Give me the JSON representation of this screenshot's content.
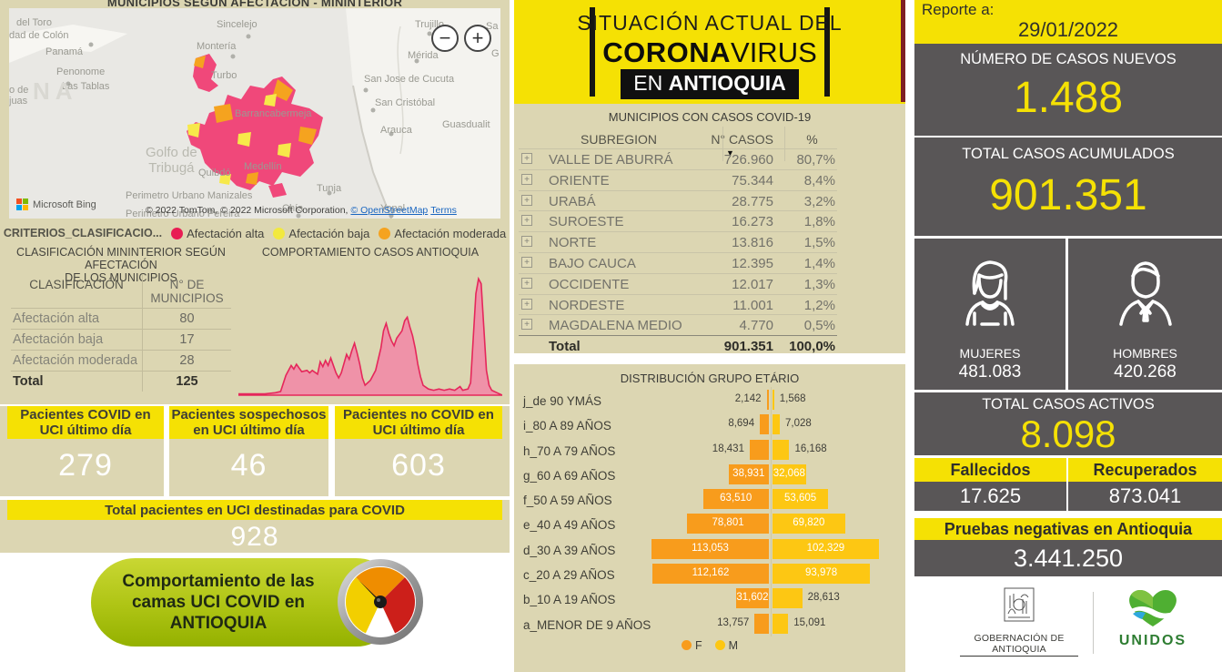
{
  "left": {
    "map": {
      "title": "MUNICIPIOS SEGÚN AFECTACIÓN - MININTERIOR",
      "labels": [
        "del Toro",
        "dad de Colón",
        "Panamá",
        "Penonome",
        "Las Tablas",
        "o de",
        "juas",
        "NA",
        "Sincelejo",
        "Montería",
        "Turbo",
        "Barrancabermeja",
        "Golfo de\nTribugá",
        "Quibdó",
        "Medellín",
        "Perimetro Urbano Manizales",
        "Perimetro Urbano Pereira",
        "Chía",
        "Tunja",
        "Yopal",
        "Trujillo",
        "Sa",
        "Mérida",
        "G",
        "San Jose de Cucuta",
        "San Cristóbal",
        "Arauca",
        "Guasdualit"
      ],
      "zoom_out": "−",
      "zoom_in": "+",
      "bing": "Microsoft Bing",
      "attribution": "© 2022 TomTom, © 2022 Microsoft Corporation,",
      "osm_link": "© OpenStreetMap",
      "terms_link": "Terms"
    },
    "legend": {
      "title": "CRITERIOS_CLASIFICACIO...",
      "items": [
        {
          "label": "Afectación alta",
          "color": "#e81d53"
        },
        {
          "label": "Afectación baja",
          "color": "#f2e93e"
        },
        {
          "label": "Afectación moderada",
          "color": "#f5a31f"
        }
      ]
    },
    "classification": {
      "title_line1": "CLASIFICACIÓN MININTERIOR SEGÚN AFECTACIÓN",
      "title_line2": "DE LOS MUNICIPIOS",
      "col1": "CLASIFICACIÓN",
      "col2": "N° DE MUNICIPIOS",
      "rows": [
        {
          "label": "Afectación alta",
          "value": "80"
        },
        {
          "label": "Afectación baja",
          "value": "17"
        },
        {
          "label": "Afectación moderada",
          "value": "28"
        }
      ],
      "total_label": "Total",
      "total_value": "125"
    },
    "uci_cards": [
      {
        "label": "Pacientes COVID en UCI último día",
        "value": "279"
      },
      {
        "label": "Pacientes sospechosos en UCI último día",
        "value": "46"
      },
      {
        "label": "Pacientes no COVID en UCI último día",
        "value": "603"
      }
    ],
    "uci_total": {
      "label": "Total pacientes en UCI destinadas para COVID",
      "value": "928"
    },
    "badge": {
      "line1": "Comportamiento de las",
      "line2": "camas UCI COVID en",
      "line3": "ANTIOQUIA"
    }
  },
  "middle": {
    "header": {
      "line1": "SITUACIÓN ACTUAL DEL",
      "brand_bold": "CORONA",
      "brand_light": "VIRUS",
      "en": "EN ",
      "region": "ANTIOQUIA"
    },
    "table": {
      "title": "MUNICIPIOS CON CASOS COVID-19",
      "col_subregion": "SUBREGION",
      "col_cases": "N° CASOS",
      "col_pct": "%",
      "sort_icon": "▼",
      "expand_icon": "+",
      "rows": [
        {
          "region": "VALLE DE ABURRÁ",
          "cases": "726.960",
          "pct": "80,7%"
        },
        {
          "region": "ORIENTE",
          "cases": "75.344",
          "pct": "8,4%"
        },
        {
          "region": "URABÁ",
          "cases": "28.775",
          "pct": "3,2%"
        },
        {
          "region": "SUROESTE",
          "cases": "16.273",
          "pct": "1,8%"
        },
        {
          "region": "NORTE",
          "cases": "13.816",
          "pct": "1,5%"
        },
        {
          "region": "BAJO CAUCA",
          "cases": "12.395",
          "pct": "1,4%"
        },
        {
          "region": "OCCIDENTE",
          "cases": "12.017",
          "pct": "1,3%"
        },
        {
          "region": "NORDESTE",
          "cases": "11.001",
          "pct": "1,2%"
        },
        {
          "region": "MAGDALENA MEDIO",
          "cases": "4.770",
          "pct": "0,5%"
        }
      ],
      "total": {
        "region": "Total",
        "cases": "901.351",
        "pct": "100,0%"
      }
    }
  },
  "right": {
    "report_label": "Reporte a:",
    "report_date": "29/01/2022",
    "new_cases": {
      "label": "NÚMERO DE CASOS NUEVOS",
      "value": "1.488"
    },
    "total_cases": {
      "label": "TOTAL CASOS ACUMULADOS",
      "value": "901.351"
    },
    "women": {
      "label": "MUJERES",
      "value": "481.083"
    },
    "men": {
      "label": "HOMBRES",
      "value": "420.268"
    },
    "active": {
      "label": "TOTAL CASOS ACTIVOS",
      "value": "8.098"
    },
    "deaths": {
      "label": "Fallecidos",
      "value": "17.625"
    },
    "recovered": {
      "label": "Recuperados",
      "value": "873.041"
    },
    "negative_tests": {
      "label": "Pruebas negativas en Antioquia",
      "value": "3.441.250"
    },
    "gov_logo_text": "GOBERNACIÓN DE ANTIOQUIA",
    "unidos_logo_text": "UNIDOS"
  },
  "chart_data": [
    {
      "type": "area",
      "title": "COMPORTAMIENTO CASOS ANTIOQUIA",
      "xlabel": "",
      "ylabel": "",
      "axis_labels_shown": false,
      "fill_color": "#ef92a8",
      "stroke_color": "#e5275b",
      "points": [
        [
          0,
          1
        ],
        [
          5,
          1
        ],
        [
          10,
          1
        ],
        [
          14,
          2
        ],
        [
          16,
          3
        ],
        [
          18,
          16
        ],
        [
          20,
          24
        ],
        [
          21,
          21
        ],
        [
          22,
          25
        ],
        [
          24,
          19
        ],
        [
          26,
          20
        ],
        [
          27,
          18
        ],
        [
          28,
          20
        ],
        [
          30,
          17
        ],
        [
          31,
          27
        ],
        [
          32,
          23
        ],
        [
          33,
          28
        ],
        [
          34,
          24
        ],
        [
          35,
          30
        ],
        [
          37,
          18
        ],
        [
          38,
          14
        ],
        [
          39,
          18
        ],
        [
          41,
          33
        ],
        [
          42,
          29
        ],
        [
          43,
          36
        ],
        [
          44,
          42
        ],
        [
          45,
          34
        ],
        [
          46,
          25
        ],
        [
          47,
          14
        ],
        [
          48,
          8
        ],
        [
          50,
          12
        ],
        [
          52,
          20
        ],
        [
          54,
          38
        ],
        [
          55,
          52
        ],
        [
          56,
          58
        ],
        [
          57,
          50
        ],
        [
          58,
          44
        ],
        [
          59,
          40
        ],
        [
          60,
          46
        ],
        [
          62,
          52
        ],
        [
          63,
          60
        ],
        [
          64,
          63
        ],
        [
          65,
          55
        ],
        [
          66,
          48
        ],
        [
          67,
          38
        ],
        [
          68,
          25
        ],
        [
          69,
          15
        ],
        [
          70,
          8
        ],
        [
          72,
          5
        ],
        [
          74,
          4
        ],
        [
          76,
          5
        ],
        [
          78,
          4
        ],
        [
          80,
          5
        ],
        [
          82,
          4
        ],
        [
          84,
          7
        ],
        [
          85,
          4
        ],
        [
          87,
          5
        ],
        [
          88,
          10
        ],
        [
          90,
          82
        ],
        [
          91,
          94
        ],
        [
          92,
          90
        ],
        [
          93,
          55
        ],
        [
          94,
          20
        ],
        [
          95,
          8
        ],
        [
          96,
          4
        ],
        [
          98,
          2
        ],
        [
          100,
          0
        ]
      ]
    },
    {
      "type": "bar",
      "subtype": "population-pyramid",
      "title": "DISTRIBUCIÓN GRUPO ETÁRIO",
      "categories": [
        "j_de 90 YMÁS",
        "i_80 A 89 AÑOS",
        "h_70 A 79 AÑOS",
        "g_60 A 69 AÑOS",
        "f_50 A 59 AÑOS",
        "e_40 A 49 AÑOS",
        "d_30 A 39 AÑOS",
        "c_20 A 29 AÑOS",
        "b_10 A 19 AÑOS",
        "a_MENOR DE 9 AÑOS"
      ],
      "series": [
        {
          "name": "F",
          "color": "#f89c1c",
          "values": [
            2142,
            8694,
            18431,
            38931,
            63510,
            78801,
            113053,
            112162,
            31602,
            13757
          ]
        },
        {
          "name": "M",
          "color": "#fdc713",
          "values": [
            1568,
            7028,
            16168,
            32068,
            53605,
            69820,
            102329,
            93978,
            28613,
            15091
          ]
        }
      ],
      "legend_position": "bottom"
    }
  ]
}
